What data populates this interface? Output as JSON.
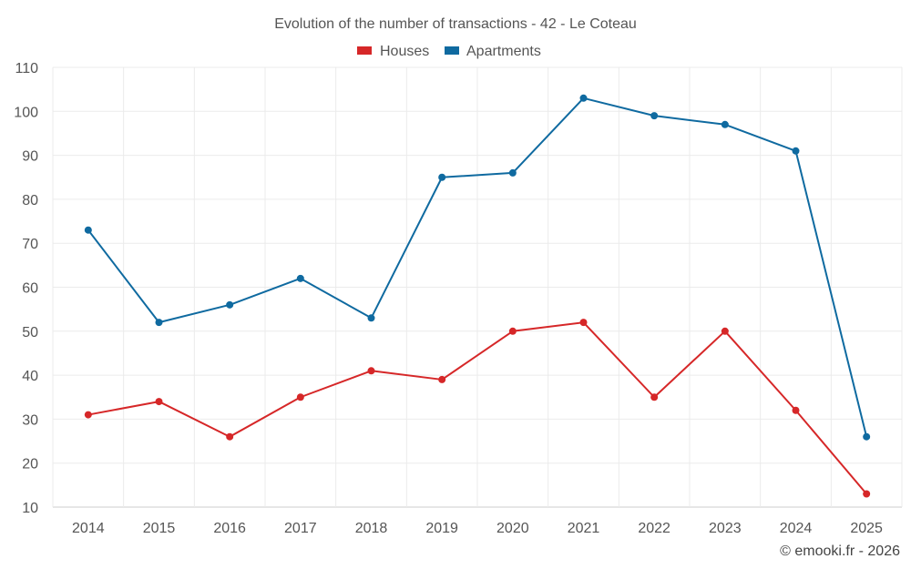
{
  "chart_data": {
    "type": "line",
    "title": "Evolution of the number of transactions - 42 - Le Coteau",
    "categories": [
      "2014",
      "2015",
      "2016",
      "2017",
      "2018",
      "2019",
      "2020",
      "2021",
      "2022",
      "2023",
      "2024",
      "2025"
    ],
    "series": [
      {
        "name": "Houses",
        "color": "#d62728",
        "values": [
          31,
          34,
          26,
          35,
          41,
          39,
          50,
          52,
          35,
          50,
          32,
          13
        ]
      },
      {
        "name": "Apartments",
        "color": "#0f6aa0",
        "values": [
          73,
          52,
          56,
          62,
          53,
          85,
          86,
          103,
          99,
          97,
          91,
          26
        ]
      }
    ],
    "y_ticks": [
      10,
      20,
      30,
      40,
      50,
      60,
      70,
      80,
      90,
      100,
      110
    ],
    "ylim": [
      10,
      110
    ],
    "grid": true,
    "legend_position": "top-center",
    "xlabel": "",
    "ylabel": ""
  },
  "credit": "© emooki.fr - 2026"
}
